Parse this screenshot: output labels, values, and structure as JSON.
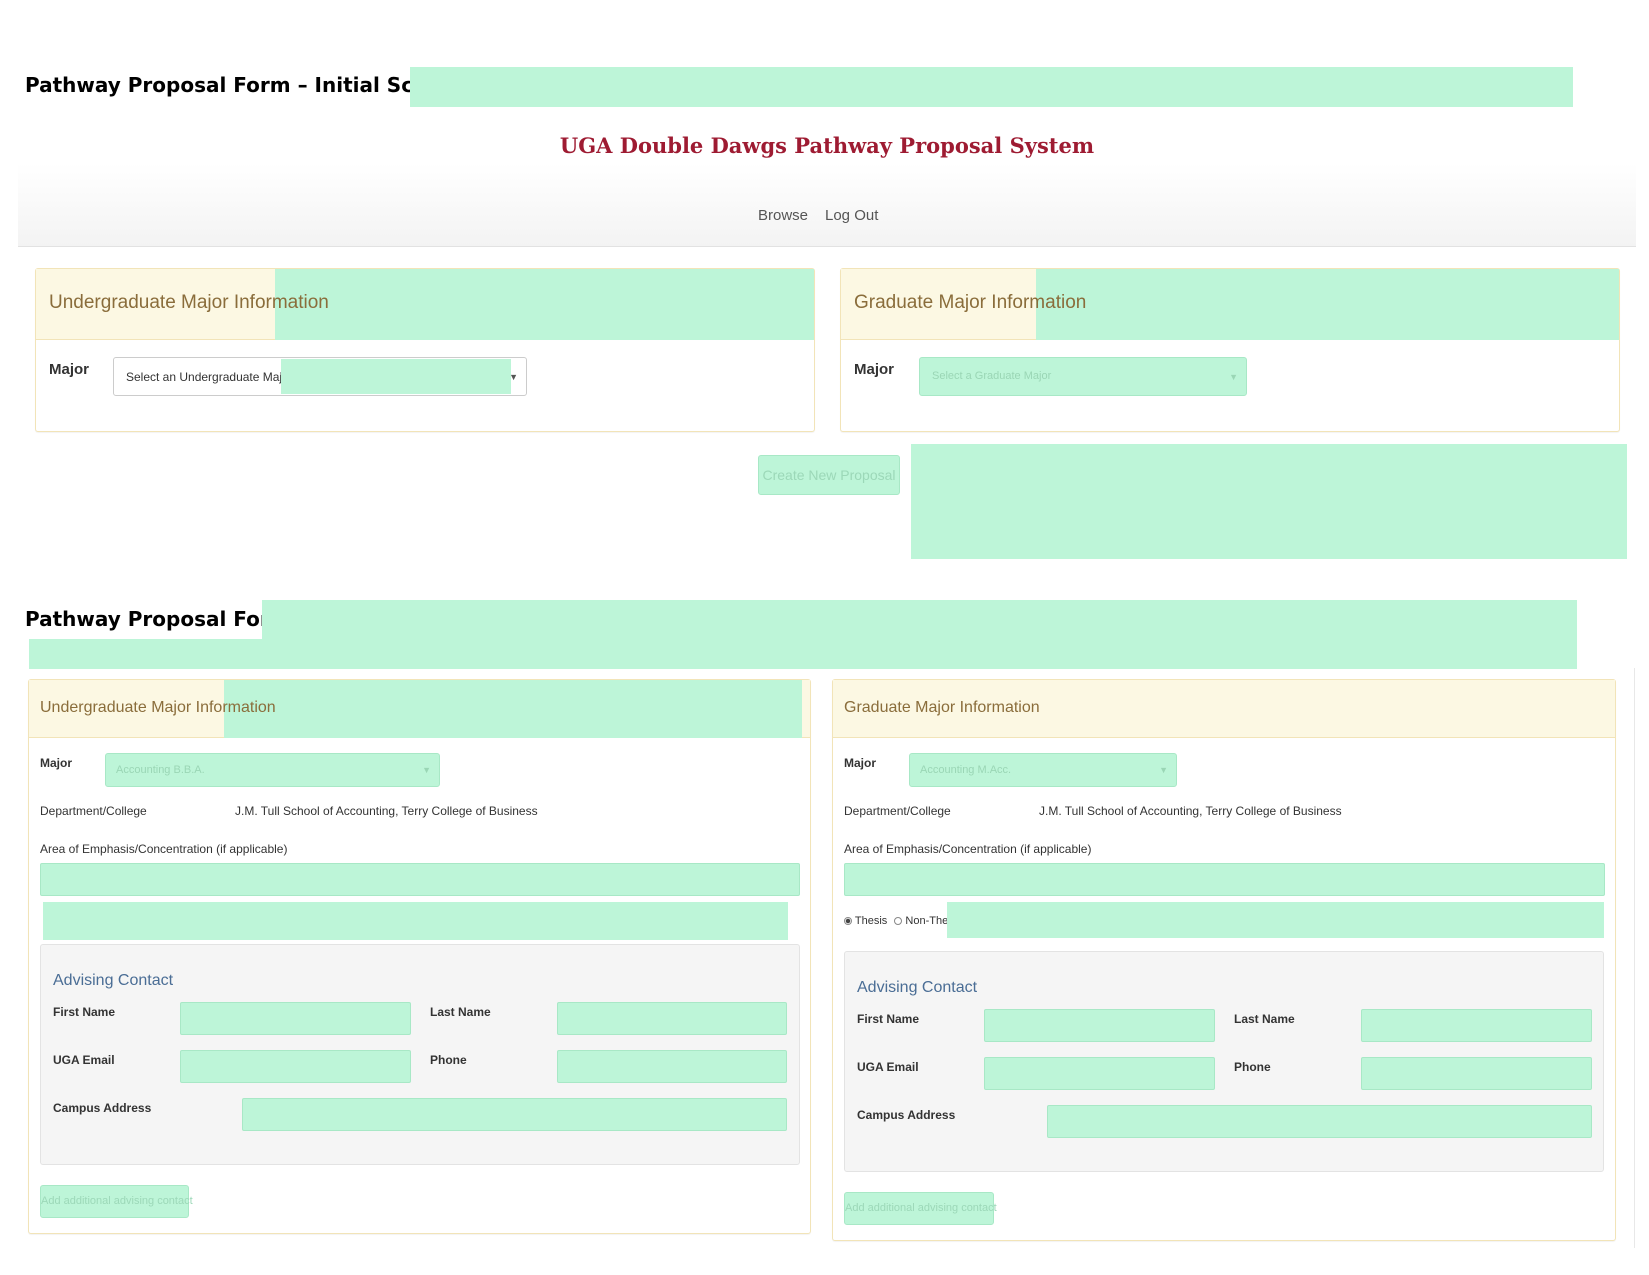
{
  "headings": {
    "initial_screen": "Pathway Proposal Form – Initial Screen:",
    "form": "Pathway Proposal Form:"
  },
  "app": {
    "title": "UGA Double Dawgs Pathway Proposal System",
    "nav": [
      "Browse",
      "Log Out"
    ]
  },
  "initial": {
    "undergrad_panel": {
      "title": "Undergraduate Major Information",
      "major_label": "Major",
      "select_value": "Select an Undergraduate Major"
    },
    "grad_panel": {
      "title": "Graduate Major Information",
      "major_label": "Major",
      "select_placeholder": "Select a Graduate Major"
    },
    "create_button": "Create New Proposal"
  },
  "form": {
    "undergrad": {
      "title": "Undergraduate Major Information",
      "major_label": "Major",
      "major_value": "Accounting B.B.A.",
      "dept_label": "Department/College",
      "dept_value": "J.M. Tull School of Accounting, Terry College of Business",
      "emphasis_label": "Area of Emphasis/Concentration (if applicable)",
      "advising": {
        "title": "Advising Contact",
        "first_name": "First Name",
        "last_name": "Last Name",
        "email": "UGA Email",
        "phone": "Phone",
        "address": "Campus Address"
      },
      "add_contact": "Add additional advising contact"
    },
    "grad": {
      "title": "Graduate Major Information",
      "major_label": "Major",
      "major_value": "Accounting M.Acc.",
      "dept_label": "Department/College",
      "dept_value": "J.M. Tull School of Accounting, Terry College of Business",
      "emphasis_label": "Area of Emphasis/Concentration (if applicable)",
      "thesis_options": [
        "Thesis",
        "Non-Thesis"
      ],
      "thesis_selected": "Thesis",
      "advising": {
        "title": "Advising Contact",
        "first_name": "First Name",
        "last_name": "Last Name",
        "email": "UGA Email",
        "phone": "Phone",
        "address": "Campus Address"
      },
      "add_contact": "Add additional advising contact"
    }
  }
}
